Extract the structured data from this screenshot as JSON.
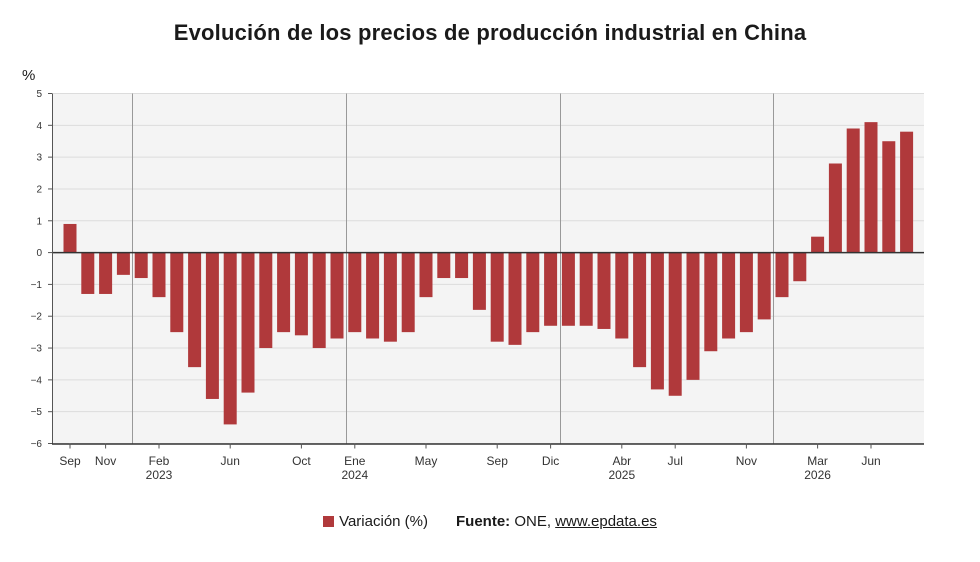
{
  "chart_data": {
    "type": "bar",
    "title": "Evolución de los precios de producción industrial en China",
    "unit": "%",
    "ylim": [
      -6,
      5
    ],
    "yticks": [
      "5",
      "4",
      "3",
      "2",
      "1",
      "0",
      "−1",
      "−2",
      "−3",
      "−4",
      "−5",
      "−6"
    ],
    "grid": true,
    "legend_position": "bottom-center",
    "series": [
      {
        "name": "Variación (%)",
        "color": "#b0393b",
        "values": [
          0.9,
          -1.3,
          -1.3,
          -0.7,
          -0.8,
          -1.4,
          -2.5,
          -3.6,
          -4.6,
          -5.4,
          -4.4,
          -3.0,
          -2.5,
          -2.6,
          -3.0,
          -2.7,
          -2.5,
          -2.7,
          -2.8,
          -2.5,
          -1.4,
          -0.8,
          -0.8,
          -1.8,
          -2.8,
          -2.9,
          -2.5,
          -2.3,
          -2.3,
          -2.3,
          -2.4,
          -2.7,
          -3.6,
          -4.3,
          -4.5,
          -4.0,
          -3.1,
          -2.7,
          -2.5,
          -2.1,
          -1.4,
          -0.9,
          0.5,
          2.8,
          3.9,
          4.1,
          3.5,
          3.8
        ]
      }
    ],
    "x_tick_labels": [
      {
        "index": 0,
        "label": "Sep"
      },
      {
        "index": 2,
        "label": "Nov"
      },
      {
        "index": 5,
        "label": "Feb",
        "year": "2023"
      },
      {
        "index": 9,
        "label": "Jun"
      },
      {
        "index": 13,
        "label": "Oct"
      },
      {
        "index": 16,
        "label": "Ene",
        "year": "2024"
      },
      {
        "index": 20,
        "label": "May"
      },
      {
        "index": 24,
        "label": "Sep"
      },
      {
        "index": 27,
        "label": "Dic"
      },
      {
        "index": 31,
        "label": "Abr",
        "year": "2025"
      },
      {
        "index": 34,
        "label": "Jul"
      },
      {
        "index": 38,
        "label": "Nov"
      },
      {
        "index": 42,
        "label": "Mar",
        "year": "2026"
      },
      {
        "index": 45,
        "label": "Jun"
      }
    ],
    "year_separators_after_index": [
      3.5,
      15.5,
      27.5,
      39.5
    ]
  },
  "legend": {
    "series_label": "Variación (%)",
    "source_label": "Fuente:",
    "source_text": " ONE, ",
    "source_link": "www.epdata.es"
  }
}
